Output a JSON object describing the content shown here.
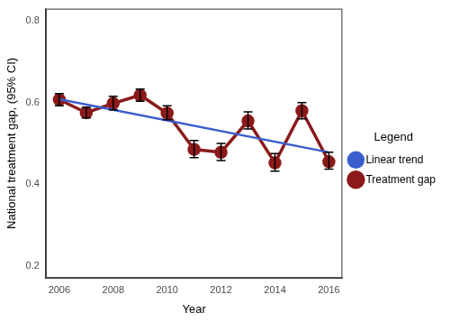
{
  "chart_data": {
    "type": "line",
    "x": [
      2006,
      2007,
      2008,
      2009,
      2010,
      2011,
      2012,
      2013,
      2014,
      2015,
      2016
    ],
    "xlabel": "Year",
    "ylabel": "National treatment gap, (95% CI)",
    "legend_title": "Legend",
    "legend": "right",
    "grid": false,
    "xlim": [
      2005.5,
      2016.5
    ],
    "xticks": [
      2006,
      2008,
      2010,
      2012,
      2014,
      2016
    ],
    "ylim": [
      0.17,
      0.83
    ],
    "yticks": [
      0.2,
      0.4,
      0.6,
      0.8
    ],
    "series": [
      {
        "name": "Treatment gap",
        "color": "#8b1a1a",
        "values": [
          0.607,
          0.575,
          0.598,
          0.618,
          0.574,
          0.485,
          0.478,
          0.555,
          0.452,
          0.58,
          0.455
        ],
        "lower": [
          0.592,
          0.562,
          0.582,
          0.603,
          0.558,
          0.465,
          0.458,
          0.535,
          0.432,
          0.56,
          0.437
        ],
        "upper": [
          0.622,
          0.588,
          0.615,
          0.633,
          0.592,
          0.507,
          0.5,
          0.577,
          0.475,
          0.6,
          0.478
        ]
      },
      {
        "name": "Linear trend",
        "color": "#3a5fcd",
        "x": [
          2006,
          2016
        ],
        "values": [
          0.608,
          0.478
        ]
      }
    ]
  }
}
